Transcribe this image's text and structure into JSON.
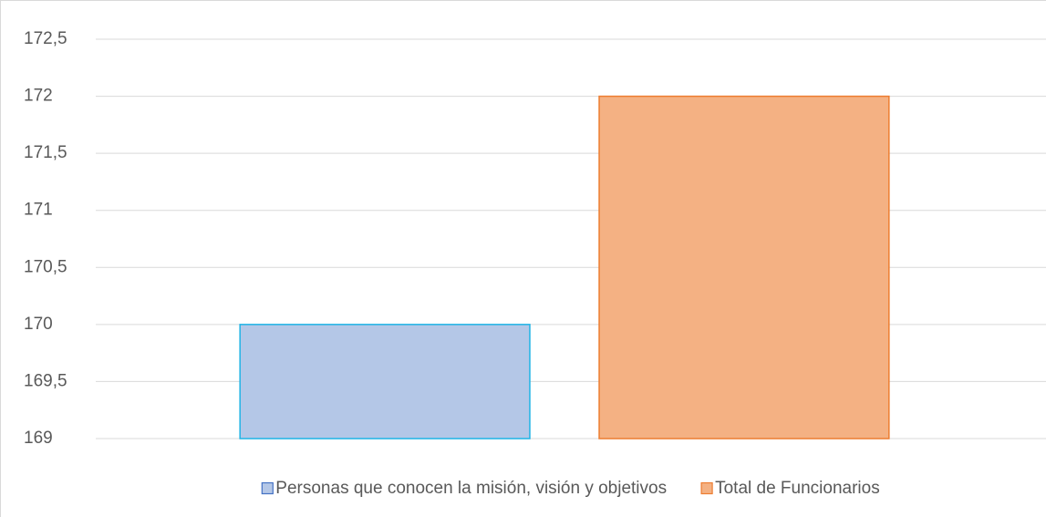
{
  "chart_data": {
    "type": "bar",
    "categories": [
      null
    ],
    "series": [
      {
        "name": "Personas que conocen la misión, visión y objetivos",
        "color": "#b4c7e7",
        "edge_color": "#1fb4e6",
        "values": [
          170
        ]
      },
      {
        "name": "Total de Funcionarios",
        "color": "#f4b183",
        "edge_color": "#ed7d31",
        "values": [
          172
        ]
      }
    ],
    "ylim": [
      169,
      172.5
    ],
    "yticks": [
      169,
      {
        "value": 169.5,
        "label": "169,5"
      },
      170,
      {
        "value": 170.5,
        "label": "170,5"
      },
      171,
      {
        "value": 171.5,
        "label": "171,5"
      },
      172,
      {
        "value": 172.5,
        "label": "172,5"
      }
    ],
    "grid": true,
    "legend": "bottom"
  }
}
